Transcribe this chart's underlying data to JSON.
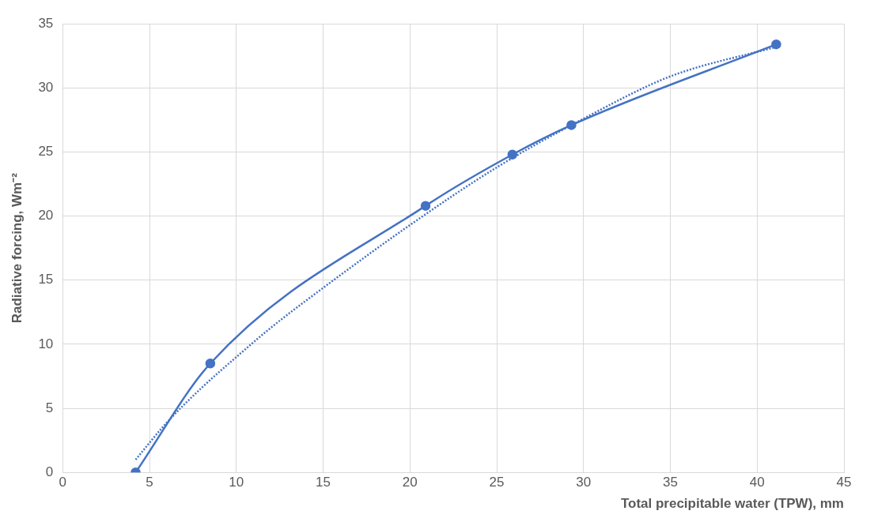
{
  "chart_data": {
    "type": "line",
    "xlabel": "Total precipitable water (TPW), mm",
    "ylabel": "Radiative forcing, Wm⁻²",
    "xlim": [
      0,
      45
    ],
    "xticks": [
      0,
      5,
      10,
      15,
      20,
      25,
      30,
      35,
      40,
      45
    ],
    "ylim": [
      0,
      35
    ],
    "yticks": [
      0,
      5,
      10,
      15,
      20,
      25,
      30,
      35
    ],
    "grid": true,
    "series": [
      {
        "type": "line",
        "color": "#4472c4",
        "marker": "circle",
        "line_style": "solid",
        "x": [
          4.2,
          8.5,
          20.9,
          25.9,
          29.3,
          41.1
        ],
        "values": [
          0,
          8.5,
          20.8,
          24.8,
          27.1,
          33.4
        ]
      },
      {
        "type": "line",
        "color": "#4472c4",
        "marker": "none",
        "line_style": "dotted",
        "x": [
          4.2,
          6,
          8,
          10,
          12,
          15,
          20,
          25,
          30,
          35,
          41.1
        ],
        "values": [
          1.0,
          3.9,
          6.6,
          9.0,
          11.3,
          14.4,
          19.3,
          23.8,
          27.6,
          30.9,
          33.2
        ]
      }
    ]
  }
}
